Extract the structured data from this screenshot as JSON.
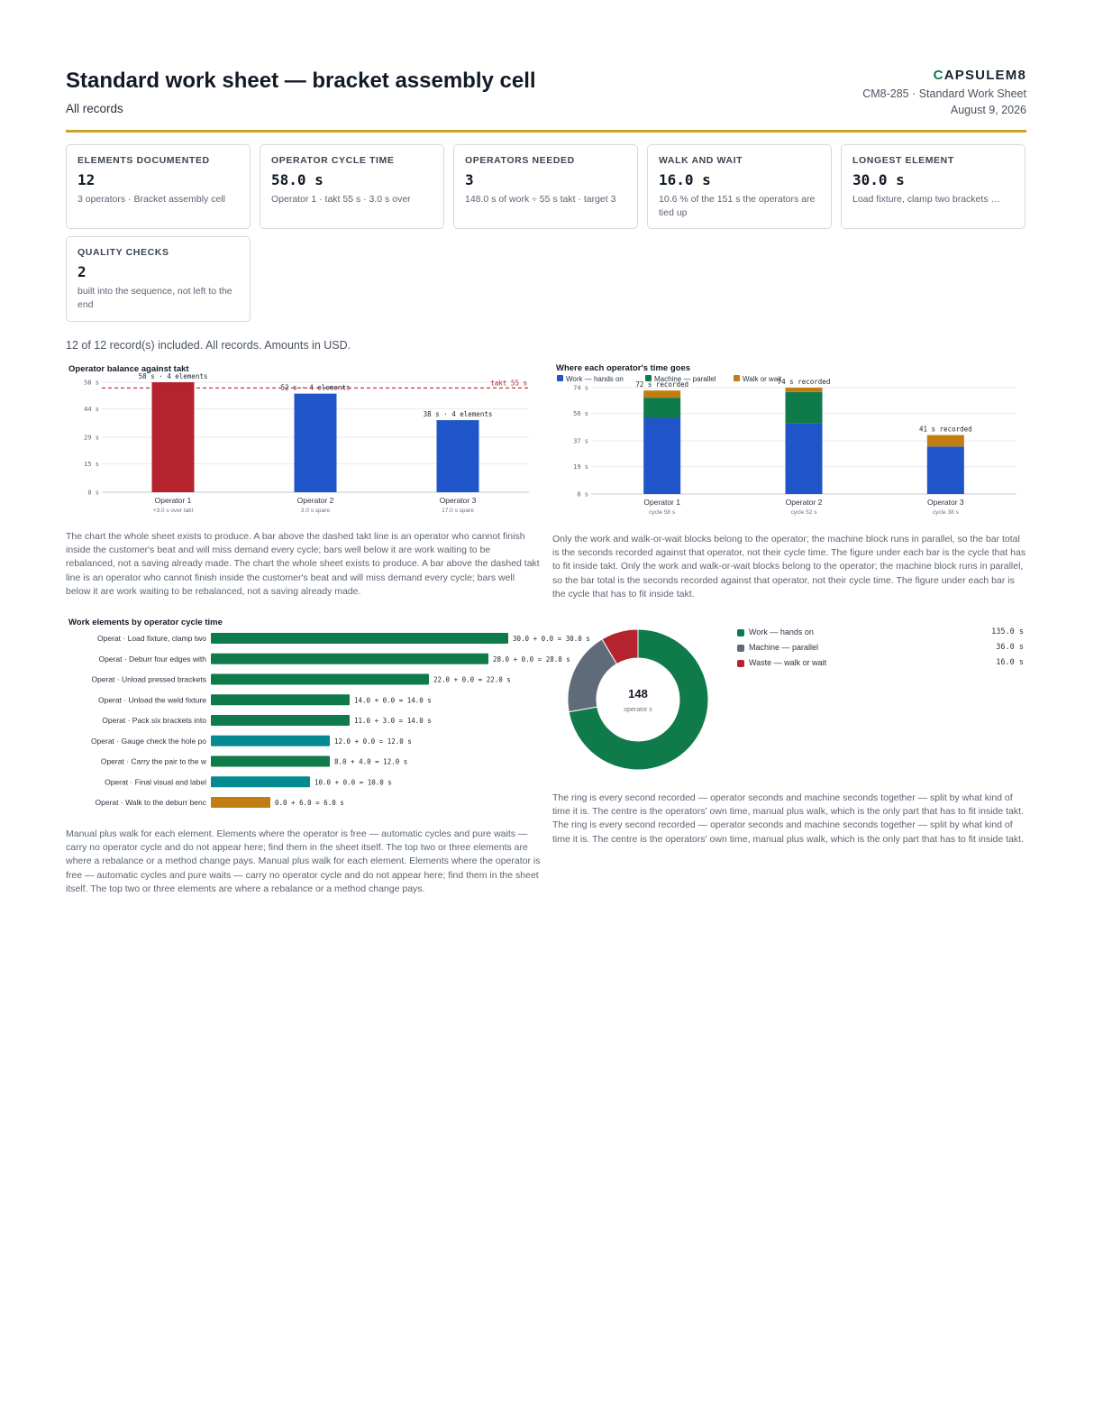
{
  "header": {
    "title": "Standard work sheet — bracket assembly cell",
    "subtitle": "All records",
    "brand_mark": "C",
    "brand_rest": "APSULEM8",
    "doc_id": "CM8-285 · Standard Work Sheet",
    "date": "August 9, 2026"
  },
  "cards": [
    {
      "label": "Elements documented",
      "value": "12",
      "note": "3 operators · Bracket assembly cell"
    },
    {
      "label": "Operator cycle time",
      "value": "58.0 s",
      "note": "Operator 1 · takt 55 s · 3.0 s over"
    },
    {
      "label": "Operators needed",
      "value": "3",
      "note": "148.0 s of work ÷ 55 s takt · target 3"
    },
    {
      "label": "Walk and wait",
      "value": "16.0 s",
      "note": "10.6 % of the 151 s the operators are tied up"
    },
    {
      "label": "Longest element",
      "value": "30.0 s",
      "note": "Load fixture, clamp two brackets …"
    },
    {
      "label": "Quality checks",
      "value": "2",
      "note": "built into the sequence, not left to the end"
    }
  ],
  "summary": "12 of 12 record(s) included. All records. Amounts in USD.",
  "colors": {
    "red": "#b5232f",
    "blue": "#1f55c9",
    "green": "#0f7a4a",
    "teal": "#058a92",
    "amber": "#c17d12",
    "slate": "#5f6b78",
    "takt": "#b5232f"
  },
  "chart_data": [
    {
      "type": "bar",
      "title": "Operator balance against takt",
      "categories": [
        "Operator 1",
        "Operator 2",
        "Operator 3"
      ],
      "sublabels": [
        "+3.0 s over takt",
        "3.0 s spare",
        "17.0 s spare"
      ],
      "values": [
        58,
        52,
        38
      ],
      "data_labels": [
        "58 s · 4 elements",
        "52 s · 4 elements",
        "38 s · 4 elements"
      ],
      "ylim": [
        0,
        58
      ],
      "yticks": [
        0,
        15,
        29,
        44,
        58
      ],
      "ytick_labels": [
        "0 s",
        "15 s",
        "29 s",
        "44 s",
        "58 s"
      ],
      "reference_line": {
        "value": 55,
        "label": "takt 55 s"
      }
    },
    {
      "type": "bar",
      "stacked": true,
      "title": "Where each operator's time goes",
      "categories": [
        "Operator 1",
        "Operator 2",
        "Operator 3"
      ],
      "sublabels": [
        "cycle 58 s",
        "cycle 52 s",
        "cycle 38 s"
      ],
      "series": [
        {
          "name": "Work — hands on",
          "values": [
            53,
            49,
            33
          ]
        },
        {
          "name": "Machine — parallel",
          "values": [
            14,
            22,
            0
          ]
        },
        {
          "name": "Walk or wait",
          "values": [
            5,
            3,
            8
          ]
        }
      ],
      "data_labels": [
        "72 s recorded",
        "74 s recorded",
        "41 s recorded"
      ],
      "ylim": [
        0,
        74
      ],
      "yticks": [
        0,
        19,
        37,
        56,
        74
      ],
      "ytick_labels": [
        "0 s",
        "19 s",
        "37 s",
        "56 s",
        "74 s"
      ],
      "legend": "top-left"
    },
    {
      "type": "bar",
      "orientation": "horizontal",
      "title": "Work elements by operator cycle time",
      "categories": [
        "Operat · Load fixture, clamp two",
        "Operat · Deburr four edges with",
        "Operat · Unload pressed brackets",
        "Operat · Unload the weld fixture",
        "Operat · Pack six brackets into",
        "Operat · Gauge check the hole po",
        "Operat · Carry the pair to the w",
        "Operat · Final visual and label",
        "Operat · Walk to the deburr benc"
      ],
      "values": [
        30,
        28,
        22,
        14,
        14,
        12,
        12,
        10,
        6
      ],
      "kinds": [
        "work",
        "work",
        "work",
        "work",
        "work",
        "check",
        "work",
        "check",
        "walk"
      ],
      "data_labels": [
        "30.0 + 0.0 = 30.0 s",
        "28.0 + 0.0 = 28.0 s",
        "22.0 + 0.0 = 22.0 s",
        "14.0 + 0.0 = 14.0 s",
        "11.0 + 3.0 = 14.0 s",
        "12.0 + 0.0 = 12.0 s",
        "8.0 + 4.0 = 12.0 s",
        "10.0 + 0.0 = 10.0 s",
        "0.0 + 6.0 = 6.0 s"
      ],
      "xlim": [
        0,
        30
      ]
    },
    {
      "type": "pie",
      "donut": true,
      "center_value": "148",
      "center_label": "operator s",
      "categories": [
        "Work — hands on",
        "Machine — parallel",
        "Waste — walk or wait"
      ],
      "values": [
        135,
        36,
        16
      ],
      "value_labels": [
        "135.0 s",
        "36.0 s",
        "16.0 s"
      ]
    }
  ],
  "paragraphs": {
    "balance": "The chart the whole sheet exists to produce. A bar above the dashed takt line is an operator who cannot finish inside the customer's beat and will miss demand every cycle; bars well below it are work waiting to be rebalanced, not a saving already made. The chart the whole sheet exists to produce. A bar above the dashed takt line is an operator who cannot finish inside the customer's beat and will miss demand every cycle; bars well below it are work waiting to be rebalanced, not a saving already made.",
    "stacked": "Only the work and walk-or-wait blocks belong to the operator; the machine block runs in parallel, so the bar total is the seconds recorded against that operator, not their cycle time. The figure under each bar is the cycle that has to fit inside takt. Only the work and walk-or-wait blocks belong to the operator; the machine block runs in parallel, so the bar total is the seconds recorded against that operator, not their cycle time. The figure under each bar is the cycle that has to fit inside takt.",
    "elements": "Manual plus walk for each element. Elements where the operator is free — automatic cycles and pure waits — carry no operator cycle and do not appear here; find them in the sheet itself. The top two or three elements are where a rebalance or a method change pays. Manual plus walk for each element. Elements where the operator is free — automatic cycles and pure waits — carry no operator cycle and do not appear here; find them in the sheet itself. The top two or three elements are where a rebalance or a method change pays.",
    "ring": "The ring is every second recorded — operator seconds and machine seconds together — split by what kind of time it is. The centre is the operators' own time, manual plus walk, which is the only part that has to fit inside takt. The ring is every second recorded — operator seconds and machine seconds together — split by what kind of time it is. The centre is the operators' own time, manual plus walk, which is the only part that has to fit inside takt."
  }
}
